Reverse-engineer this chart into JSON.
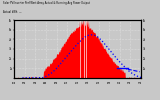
{
  "title": "Solar PV/Inverter Perf West Array Actual & Running Avg Power Output",
  "subtitle": "Actual kWh  ---",
  "bg_color": "#c8c8c8",
  "plot_bg_color": "#c8c8c8",
  "bar_color": "#ff0000",
  "line_color": "#0000ff",
  "grid_color": "#888888",
  "ylim": [
    0,
    6000
  ],
  "y_tick_labels": [
    "1k",
    "2k",
    "3k",
    "4k",
    "5k",
    "6k"
  ],
  "y_tick_values": [
    1000,
    2000,
    3000,
    4000,
    5000,
    6000
  ]
}
